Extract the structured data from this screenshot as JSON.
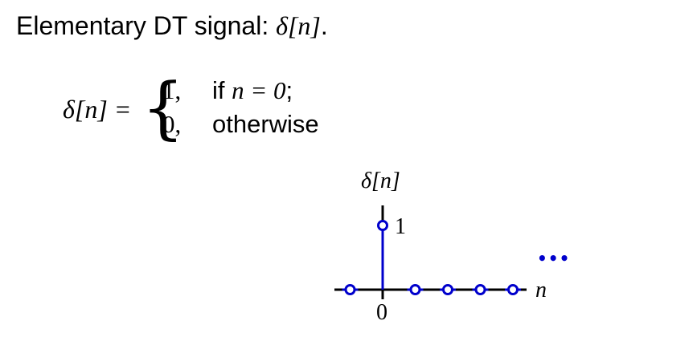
{
  "title": {
    "text": "Elementary DT signal:",
    "symbol": "δ[n]",
    "suffix": "."
  },
  "definition": {
    "lhs": "δ[n] =",
    "cases": [
      {
        "value": "1,",
        "condition_prefix": "if",
        "condition_math": "n = 0",
        "condition_suffix": ";"
      },
      {
        "value": "0,",
        "condition_prefix": "otherwise",
        "condition_math": "",
        "condition_suffix": ""
      }
    ]
  },
  "chart_data": {
    "type": "scatter",
    "title": "",
    "ylabel": "δ[n]",
    "xlabel": "n",
    "x_tick_labels": [
      "0"
    ],
    "y_tick_labels": [
      "1"
    ],
    "continuation_marker": "•••",
    "x": [
      -1,
      0,
      1,
      2,
      3,
      4
    ],
    "values": [
      0,
      1,
      0,
      0,
      0,
      0
    ],
    "colors": {
      "stem": "#0000cc",
      "axis": "#000000"
    }
  }
}
